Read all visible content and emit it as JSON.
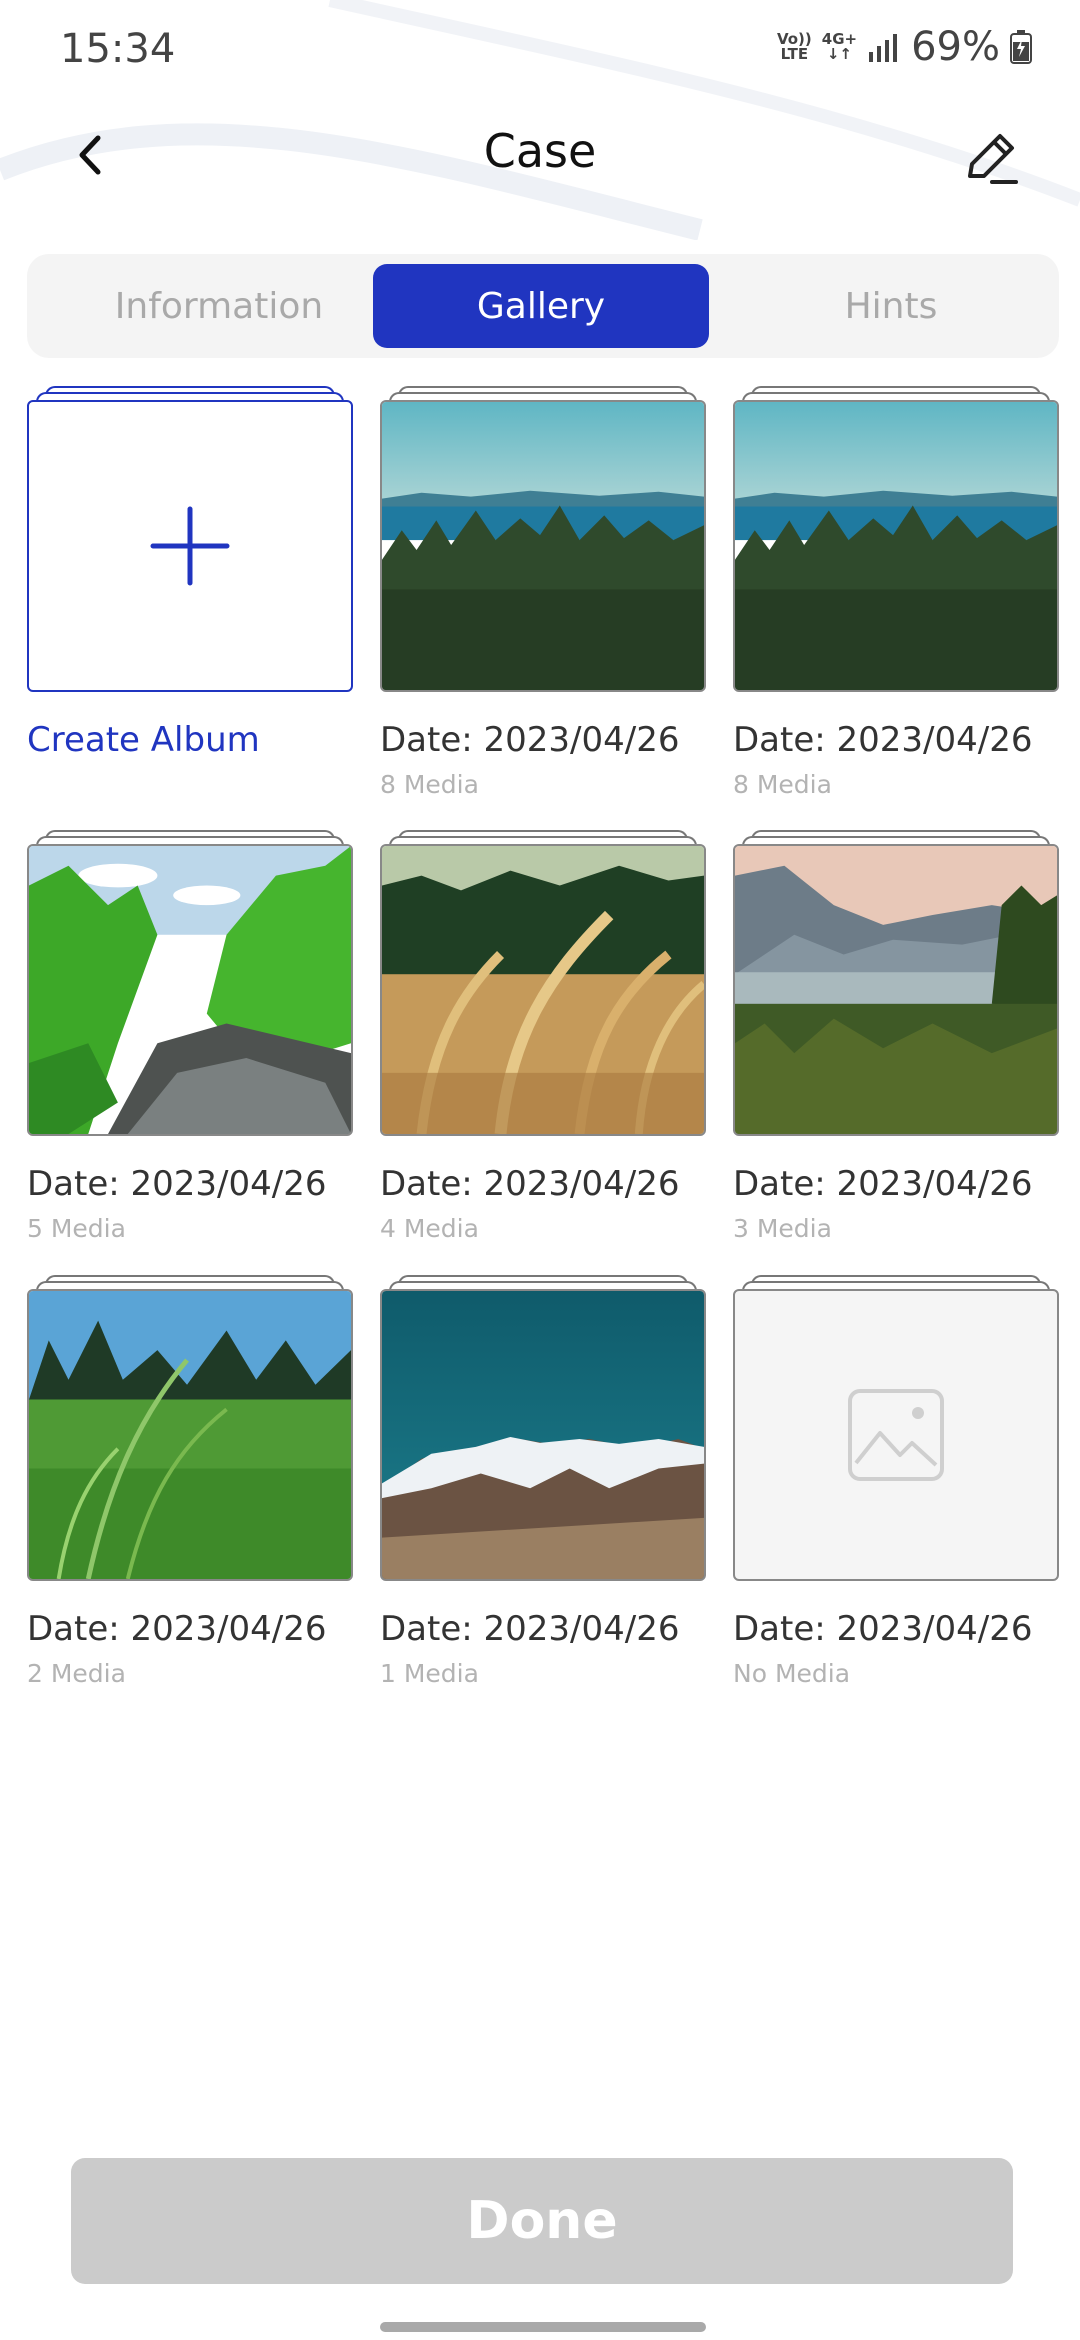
{
  "status_bar": {
    "time": "15:34",
    "volte_top": "Vo))",
    "volte_bottom": "LTE",
    "network": "4G+",
    "battery": "69%"
  },
  "header": {
    "title": "Case",
    "back_icon": "chevron-left-icon",
    "edit_icon": "pencil-icon"
  },
  "tabs": [
    {
      "label": "Information",
      "active": false
    },
    {
      "label": "Gallery",
      "active": true
    },
    {
      "label": "Hints",
      "active": false
    }
  ],
  "albums": [
    {
      "type": "create",
      "label": "Create Album"
    },
    {
      "date": "Date: 2023/04/26",
      "count": "8 Media",
      "scene": "forest-lake"
    },
    {
      "date": "Date: 2023/04/26",
      "count": "8 Media",
      "scene": "forest-lake"
    },
    {
      "date": "Date: 2023/04/26",
      "count": "5 Media",
      "scene": "green-river"
    },
    {
      "date": "Date: 2023/04/26",
      "count": "4 Media",
      "scene": "golden-grass"
    },
    {
      "date": "Date: 2023/04/26",
      "count": "3 Media",
      "scene": "mountain-lake"
    },
    {
      "date": "Date: 2023/04/26",
      "count": "2 Media",
      "scene": "green-meadow"
    },
    {
      "date": "Date: 2023/04/26",
      "count": "1 Media",
      "scene": "snowy-mountain"
    },
    {
      "date": "Date: 2023/04/26",
      "count": "No Media",
      "scene": "placeholder-image-icon"
    }
  ],
  "footer": {
    "done_label": "Done"
  },
  "colors": {
    "accent": "#2035c0",
    "disabled_button": "#cbcbcb",
    "muted_text": "#b3b3b3"
  }
}
